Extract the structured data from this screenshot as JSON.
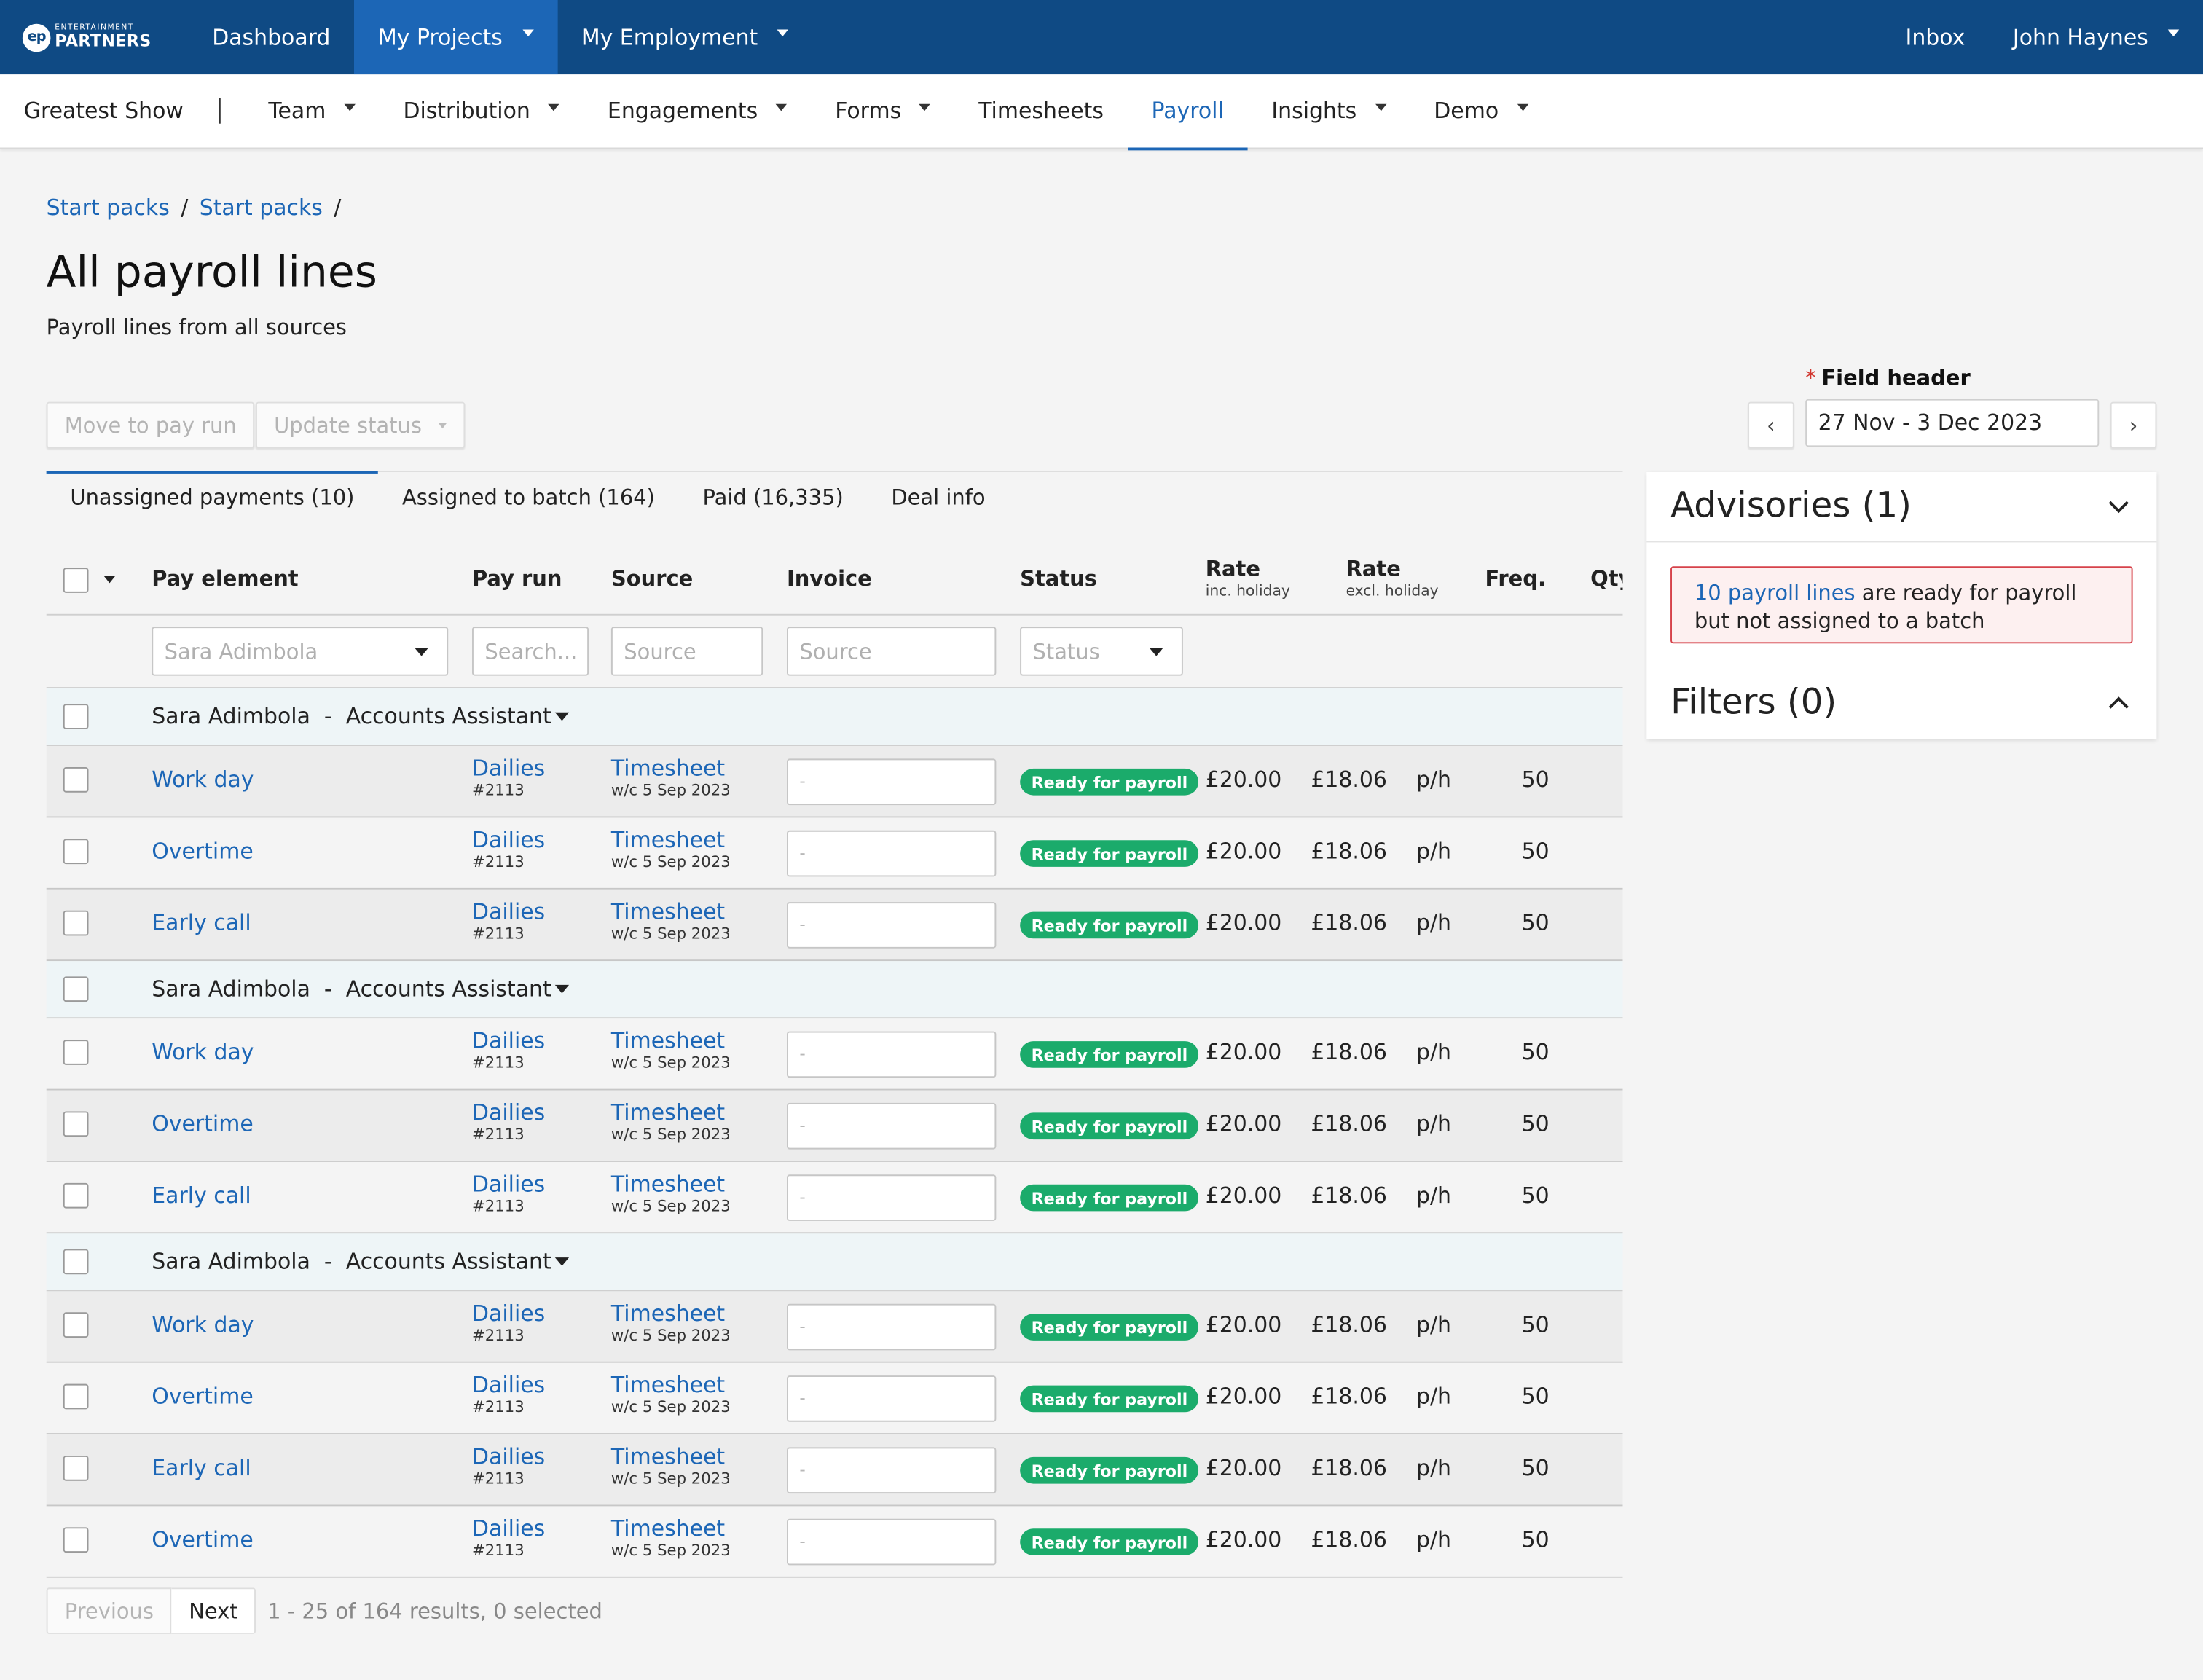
{
  "topnav": {
    "logo_small": "ENTERTAINMENT",
    "logo_big": "PARTNERS",
    "logo_mark": "ep",
    "items": [
      {
        "label": "Dashboard"
      },
      {
        "label": "My Projects"
      },
      {
        "label": "My Employment"
      }
    ],
    "inbox": "Inbox",
    "user": "John Haynes"
  },
  "subnav": {
    "project": "Greatest Show",
    "items": [
      {
        "label": "Team"
      },
      {
        "label": "Distribution"
      },
      {
        "label": "Engagements"
      },
      {
        "label": "Forms"
      },
      {
        "label": "Timesheets"
      },
      {
        "label": "Payroll"
      },
      {
        "label": "Insights"
      },
      {
        "label": "Demo"
      }
    ]
  },
  "breadcrumb": [
    "Start packs",
    "Start packs"
  ],
  "page": {
    "title": "All payroll lines",
    "subtitle": "Payroll lines from all sources"
  },
  "actions": {
    "move": "Move to pay run",
    "update": "Update status"
  },
  "date_field": {
    "required_mark": "*",
    "label": "Field header",
    "value": "27 Nov - 3 Dec 2023",
    "prev": "‹",
    "next": "›"
  },
  "tabs": [
    {
      "label": "Unassigned payments (10)"
    },
    {
      "label": "Assigned to batch (164)"
    },
    {
      "label": "Paid (16,335)"
    },
    {
      "label": "Deal info"
    }
  ],
  "table": {
    "headers": {
      "pay_element": "Pay element",
      "pay_run": "Pay run",
      "source": "Source",
      "invoice": "Invoice",
      "status": "Status",
      "rate_inc": "Rate",
      "rate_inc_sub": "inc. holiday",
      "rate_excl": "Rate",
      "rate_excl_sub": "excl. holiday",
      "freq": "Freq.",
      "qty": "Qty"
    },
    "filters": {
      "pay_element": "Sara Adimbola",
      "pay_run": "Search...",
      "source": "Source",
      "invoice": "Source",
      "status": "Status"
    },
    "groups": [
      {
        "name": "Sara Adimbola",
        "sep": "-",
        "role": "Accounts Assistant",
        "rows": [
          {
            "pay_element": "Work day",
            "pay_run": "Dailies",
            "pay_run_id": "#2113",
            "source": "Timesheet",
            "source_sub": "w/c 5 Sep 2023",
            "invoice": "-",
            "status": "Ready for payroll",
            "rate_inc": "£20.00",
            "rate_excl": "£18.06",
            "freq": "p/h",
            "qty": "50"
          },
          {
            "pay_element": "Overtime",
            "pay_run": "Dailies",
            "pay_run_id": "#2113",
            "source": "Timesheet",
            "source_sub": "w/c 5 Sep 2023",
            "invoice": "-",
            "status": "Ready for payroll",
            "rate_inc": "£20.00",
            "rate_excl": "£18.06",
            "freq": "p/h",
            "qty": "50"
          },
          {
            "pay_element": "Early call",
            "pay_run": "Dailies",
            "pay_run_id": "#2113",
            "source": "Timesheet",
            "source_sub": "w/c 5 Sep 2023",
            "invoice": "-",
            "status": "Ready for payroll",
            "rate_inc": "£20.00",
            "rate_excl": "£18.06",
            "freq": "p/h",
            "qty": "50"
          }
        ]
      },
      {
        "name": "Sara Adimbola",
        "sep": "-",
        "role": "Accounts Assistant",
        "rows": [
          {
            "pay_element": "Work day",
            "pay_run": "Dailies",
            "pay_run_id": "#2113",
            "source": "Timesheet",
            "source_sub": "w/c 5 Sep 2023",
            "invoice": "-",
            "status": "Ready for payroll",
            "rate_inc": "£20.00",
            "rate_excl": "£18.06",
            "freq": "p/h",
            "qty": "50"
          },
          {
            "pay_element": "Overtime",
            "pay_run": "Dailies",
            "pay_run_id": "#2113",
            "source": "Timesheet",
            "source_sub": "w/c 5 Sep 2023",
            "invoice": "-",
            "status": "Ready for payroll",
            "rate_inc": "£20.00",
            "rate_excl": "£18.06",
            "freq": "p/h",
            "qty": "50"
          },
          {
            "pay_element": "Early call",
            "pay_run": "Dailies",
            "pay_run_id": "#2113",
            "source": "Timesheet",
            "source_sub": "w/c 5 Sep 2023",
            "invoice": "-",
            "status": "Ready for payroll",
            "rate_inc": "£20.00",
            "rate_excl": "£18.06",
            "freq": "p/h",
            "qty": "50"
          }
        ]
      },
      {
        "name": "Sara Adimbola",
        "sep": "-",
        "role": "Accounts Assistant",
        "rows": [
          {
            "pay_element": "Work day",
            "pay_run": "Dailies",
            "pay_run_id": "#2113",
            "source": "Timesheet",
            "source_sub": "w/c 5 Sep 2023",
            "invoice": "-",
            "status": "Ready for payroll",
            "rate_inc": "£20.00",
            "rate_excl": "£18.06",
            "freq": "p/h",
            "qty": "50"
          },
          {
            "pay_element": "Overtime",
            "pay_run": "Dailies",
            "pay_run_id": "#2113",
            "source": "Timesheet",
            "source_sub": "w/c 5 Sep 2023",
            "invoice": "-",
            "status": "Ready for payroll",
            "rate_inc": "£20.00",
            "rate_excl": "£18.06",
            "freq": "p/h",
            "qty": "50"
          },
          {
            "pay_element": "Early call",
            "pay_run": "Dailies",
            "pay_run_id": "#2113",
            "source": "Timesheet",
            "source_sub": "w/c 5 Sep 2023",
            "invoice": "-",
            "status": "Ready for payroll",
            "rate_inc": "£20.00",
            "rate_excl": "£18.06",
            "freq": "p/h",
            "qty": "50"
          },
          {
            "pay_element": "Overtime",
            "pay_run": "Dailies",
            "pay_run_id": "#2113",
            "source": "Timesheet",
            "source_sub": "w/c 5 Sep 2023",
            "invoice": "-",
            "status": "Ready for payroll",
            "rate_inc": "£20.00",
            "rate_excl": "£18.06",
            "freq": "p/h",
            "qty": "50"
          }
        ]
      }
    ]
  },
  "pagination": {
    "previous": "Previous",
    "next": "Next",
    "info": "1 - 25 of 164 results, 0 selected"
  },
  "advisories": {
    "title": "Advisories (1)",
    "alert_link": "10 payroll lines",
    "alert_text": " are ready for payroll but not assigned to a batch"
  },
  "filters_panel": {
    "title": "Filters (0)"
  },
  "colors": {
    "nav_bg": "#0f4a84",
    "nav_active": "#1c66b6",
    "link": "#1c66b6",
    "status_ready": "#1bab6b",
    "alert_border": "#d6424a"
  }
}
